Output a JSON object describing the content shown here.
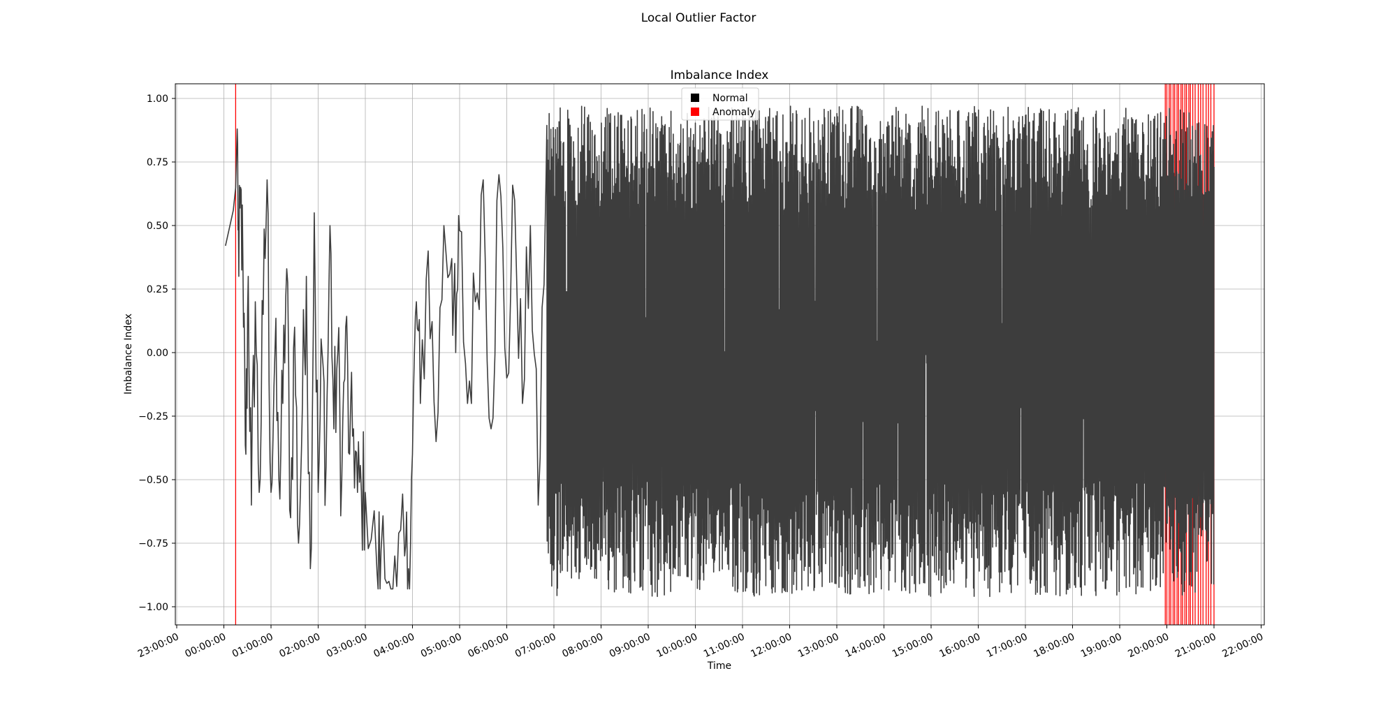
{
  "figure": {
    "suptitle": "Local Outlier Factor"
  },
  "chart_data": {
    "type": "line",
    "title": "Imbalance Index",
    "xlabel": "Time",
    "ylabel": "Imbalance Index",
    "x_ticks": [
      "23:00:00",
      "00:00:00",
      "01:00:00",
      "02:00:00",
      "03:00:00",
      "04:00:00",
      "05:00:00",
      "06:00:00",
      "07:00:00",
      "08:00:00",
      "09:00:00",
      "10:00:00",
      "11:00:00",
      "12:00:00",
      "13:00:00",
      "14:00:00",
      "15:00:00",
      "16:00:00",
      "17:00:00",
      "18:00:00",
      "19:00:00",
      "20:00:00",
      "21:00:00",
      "22:00:00"
    ],
    "y_ticks": [
      "−1.00",
      "−0.75",
      "−0.50",
      "−0.25",
      "0.00",
      "0.25",
      "0.50",
      "0.75",
      "1.00"
    ],
    "ylim": [
      -1.05,
      1.05
    ],
    "grid": true,
    "legend": {
      "placement": "upper center",
      "entries": [
        {
          "label": "Normal",
          "color": "#000000"
        },
        {
          "label": "Anomaly",
          "color": "#ff0000"
        }
      ]
    },
    "line_color": "#3d3d3d",
    "anomaly_color": "#ff0000",
    "series": [
      {
        "values_x_time": [
          "00:02",
          "00:12",
          "00:15",
          "00:17",
          "00:19",
          "00:22",
          "00:25",
          "00:28",
          "00:31",
          "00:35",
          "00:40",
          "00:45",
          "00:50",
          "00:55",
          "01:00",
          "01:05",
          "01:10",
          "01:15",
          "01:20",
          "01:25",
          "01:30",
          "01:35",
          "01:40",
          "01:45",
          "01:50",
          "01:55",
          "02:00",
          "02:05",
          "02:10",
          "02:15",
          "02:20",
          "02:25",
          "02:30",
          "02:35",
          "02:40",
          "02:45",
          "02:50",
          "02:55",
          "03:00",
          "03:15",
          "03:20",
          "03:30",
          "03:40",
          "03:50",
          "03:55",
          "04:00",
          "04:05",
          "04:10",
          "04:20",
          "04:30",
          "04:40",
          "04:50",
          "04:55",
          "05:00",
          "05:10",
          "05:20",
          "05:30",
          "05:40",
          "05:50",
          "06:00",
          "06:10",
          "06:20",
          "06:30",
          "06:40",
          "06:50"
        ],
        "values": [
          0.42,
          0.56,
          0.65,
          0.88,
          0.3,
          0.64,
          0.1,
          -0.4,
          0.3,
          -0.6,
          0.2,
          -0.55,
          0.15,
          0.68,
          -0.55,
          0.0,
          -0.5,
          -0.2,
          0.33,
          -0.65,
          0.1,
          -0.75,
          -0.2,
          0.3,
          -0.85,
          0.55,
          -0.55,
          0.0,
          -0.45,
          0.5,
          -0.3,
          0.0,
          -0.5,
          0.1,
          -0.4,
          -0.3,
          -0.55,
          -0.55,
          -0.55,
          -0.87,
          -0.78,
          -0.9,
          -0.92,
          -0.8,
          -0.85,
          -0.4,
          0.2,
          -0.2,
          0.4,
          -0.35,
          0.5,
          0.37,
          0.0,
          0.48,
          -0.2,
          0.2,
          0.68,
          -0.3,
          0.7,
          -0.1,
          0.6,
          -0.2,
          0.5,
          -0.6,
          0.7
        ]
      }
    ],
    "dense_band_note": "07:00–21:00 rapid oscillation between about −0.97 and 0.96",
    "anomaly_markers_time": [
      "00:15",
      "19:58",
      "20:00",
      "20:03",
      "20:05",
      "20:08",
      "20:10",
      "20:13",
      "20:15",
      "20:18",
      "20:20",
      "20:23",
      "20:25",
      "20:28",
      "20:30",
      "20:33",
      "20:36",
      "20:40",
      "20:43",
      "20:46",
      "20:50",
      "20:53",
      "20:56",
      "21:00"
    ]
  }
}
